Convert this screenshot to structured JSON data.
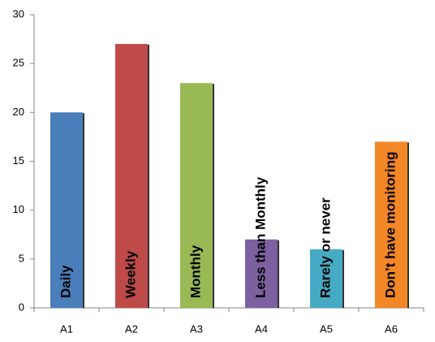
{
  "chart_data": {
    "type": "bar",
    "categories": [
      "A1",
      "A2",
      "A3",
      "A4",
      "A5",
      "A6"
    ],
    "values": [
      20,
      27,
      23,
      7,
      6,
      17
    ],
    "bar_labels": [
      "Daily",
      "Weekly",
      "Monthly",
      "Less than Monthly",
      "Rarely or never",
      "Don’t have monitoring"
    ],
    "colors": [
      "#4a7ebb",
      "#be4b48",
      "#98b954",
      "#7d60a0",
      "#46aac5",
      "#f38626"
    ],
    "ylim": [
      0,
      30
    ],
    "yticks": [
      0,
      5,
      10,
      15,
      20,
      25,
      30
    ],
    "grid": false
  }
}
